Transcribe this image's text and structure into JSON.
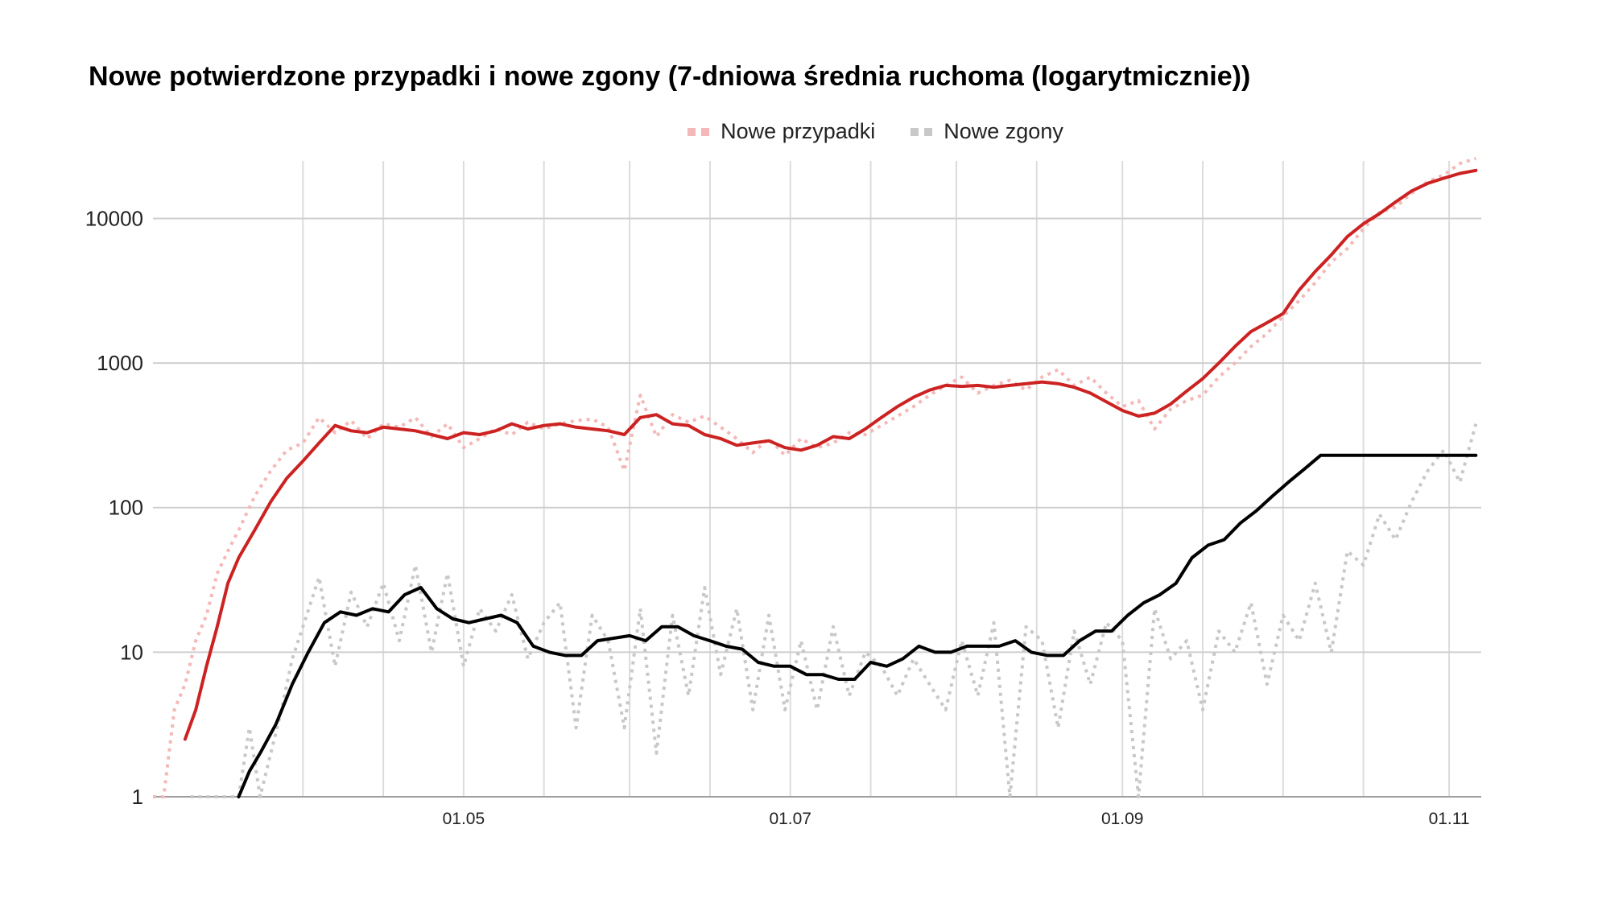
{
  "chart_data": {
    "type": "line",
    "title": "Nowe potwierdzone przypadki i nowe zgony (7-dniowa średnia ruchoma (logarytmicznie))",
    "y_scale": "log",
    "ylim": [
      1,
      25000
    ],
    "y_ticks": [
      1,
      10,
      100,
      1000,
      10000
    ],
    "y_tick_labels": [
      "1",
      "10",
      "100",
      "1000",
      "10000"
    ],
    "x_range": [
      "2020-03-04",
      "2020-11-07"
    ],
    "x_ticks": [
      "2020-05-01",
      "2020-07-01",
      "2020-09-01",
      "2020-11-01"
    ],
    "x_tick_labels": [
      "01.05",
      "01.07",
      "01.09",
      "01.11"
    ],
    "grid": true,
    "legend_position": "top",
    "legend": [
      {
        "name": "Nowe przypadki",
        "color": "#f4b8b8"
      },
      {
        "name": "Nowe zgony",
        "color": "#c8c8c8"
      }
    ],
    "series": [
      {
        "name": "Nowe przypadki",
        "style": "dotted",
        "color": "#f4b8b8",
        "x": [
          "2020-03-04",
          "2020-03-06",
          "2020-03-08",
          "2020-03-10",
          "2020-03-12",
          "2020-03-14",
          "2020-03-16",
          "2020-03-18",
          "2020-03-20",
          "2020-03-23",
          "2020-03-26",
          "2020-03-29",
          "2020-04-01",
          "2020-04-04",
          "2020-04-07",
          "2020-04-10",
          "2020-04-13",
          "2020-04-16",
          "2020-04-19",
          "2020-04-22",
          "2020-04-25",
          "2020-04-28",
          "2020-05-01",
          "2020-05-04",
          "2020-05-07",
          "2020-05-10",
          "2020-05-13",
          "2020-05-16",
          "2020-05-19",
          "2020-05-22",
          "2020-05-25",
          "2020-05-28",
          "2020-05-31",
          "2020-06-03",
          "2020-06-06",
          "2020-06-09",
          "2020-06-12",
          "2020-06-15",
          "2020-06-18",
          "2020-06-21",
          "2020-06-24",
          "2020-06-27",
          "2020-06-30",
          "2020-07-03",
          "2020-07-06",
          "2020-07-09",
          "2020-07-12",
          "2020-07-15",
          "2020-07-18",
          "2020-07-21",
          "2020-07-24",
          "2020-07-27",
          "2020-07-30",
          "2020-08-02",
          "2020-08-05",
          "2020-08-08",
          "2020-08-11",
          "2020-08-14",
          "2020-08-17",
          "2020-08-20",
          "2020-08-23",
          "2020-08-26",
          "2020-08-29",
          "2020-09-01",
          "2020-09-04",
          "2020-09-07",
          "2020-09-10",
          "2020-09-13",
          "2020-09-16",
          "2020-09-19",
          "2020-09-22",
          "2020-09-25",
          "2020-09-28",
          "2020-10-01",
          "2020-10-04",
          "2020-10-07",
          "2020-10-10",
          "2020-10-13",
          "2020-10-16",
          "2020-10-19",
          "2020-10-22",
          "2020-10-25",
          "2020-10-28",
          "2020-10-31",
          "2020-11-03",
          "2020-11-06"
        ],
        "values": [
          1,
          1,
          4,
          6,
          12,
          18,
          35,
          50,
          70,
          120,
          180,
          250,
          280,
          420,
          330,
          400,
          300,
          380,
          360,
          420,
          310,
          380,
          260,
          300,
          350,
          320,
          390,
          350,
          380,
          400,
          410,
          360,
          180,
          600,
          310,
          440,
          390,
          430,
          360,
          300,
          240,
          300,
          230,
          300,
          260,
          280,
          330,
          320,
          370,
          430,
          500,
          600,
          700,
          800,
          620,
          700,
          760,
          650,
          800,
          900,
          700,
          800,
          620,
          500,
          550,
          350,
          480,
          550,
          600,
          800,
          1000,
          1300,
          1600,
          2100,
          2700,
          3600,
          5000,
          6200,
          8500,
          11000,
          12000,
          15000,
          18000,
          20000,
          24000,
          26000
        ]
      },
      {
        "name": "Nowe zgony",
        "style": "dotted",
        "color": "#c8c8c8",
        "x": [
          "2020-03-11",
          "2020-03-14",
          "2020-03-17",
          "2020-03-20",
          "2020-03-22",
          "2020-03-24",
          "2020-03-26",
          "2020-03-28",
          "2020-03-30",
          "2020-04-01",
          "2020-04-04",
          "2020-04-07",
          "2020-04-10",
          "2020-04-13",
          "2020-04-16",
          "2020-04-19",
          "2020-04-22",
          "2020-04-25",
          "2020-04-28",
          "2020-05-01",
          "2020-05-04",
          "2020-05-07",
          "2020-05-10",
          "2020-05-13",
          "2020-05-16",
          "2020-05-19",
          "2020-05-22",
          "2020-05-25",
          "2020-05-28",
          "2020-05-31",
          "2020-06-03",
          "2020-06-06",
          "2020-06-09",
          "2020-06-12",
          "2020-06-15",
          "2020-06-18",
          "2020-06-21",
          "2020-06-24",
          "2020-06-27",
          "2020-06-30",
          "2020-07-03",
          "2020-07-06",
          "2020-07-09",
          "2020-07-12",
          "2020-07-15",
          "2020-07-18",
          "2020-07-21",
          "2020-07-24",
          "2020-07-27",
          "2020-07-30",
          "2020-08-02",
          "2020-08-05",
          "2020-08-08",
          "2020-08-11",
          "2020-08-14",
          "2020-08-17",
          "2020-08-20",
          "2020-08-23",
          "2020-08-26",
          "2020-08-29",
          "2020-09-01",
          "2020-09-04",
          "2020-09-07",
          "2020-09-10",
          "2020-09-13",
          "2020-09-16",
          "2020-09-19",
          "2020-09-22",
          "2020-09-25",
          "2020-09-28",
          "2020-10-01",
          "2020-10-04",
          "2020-10-07",
          "2020-10-10",
          "2020-10-13",
          "2020-10-16",
          "2020-10-19",
          "2020-10-22",
          "2020-10-25",
          "2020-10-28",
          "2020-10-31",
          "2020-11-03",
          "2020-11-06"
        ],
        "values": [
          1,
          1,
          1,
          1,
          3,
          1,
          2,
          4,
          9,
          15,
          33,
          8,
          26,
          15,
          30,
          12,
          40,
          10,
          35,
          8,
          20,
          14,
          25,
          9,
          16,
          22,
          3,
          18,
          12,
          3,
          20,
          2,
          18,
          5,
          28,
          7,
          20,
          4,
          18,
          4,
          12,
          4,
          15,
          5,
          10,
          8,
          5,
          9,
          6,
          4,
          12,
          5,
          16,
          1,
          15,
          12,
          3,
          14,
          6,
          16,
          12,
          1,
          20,
          9,
          12,
          4,
          14,
          10,
          22,
          6,
          18,
          12,
          30,
          10,
          50,
          40,
          90,
          60,
          110,
          180,
          250,
          150,
          380
        ]
      }
    ],
    "moving_averages": [
      {
        "color": "#cc2222",
        "x": [
          "2020-03-10",
          "2020-03-12",
          "2020-03-14",
          "2020-03-16",
          "2020-03-18",
          "2020-03-20",
          "2020-03-23",
          "2020-03-26",
          "2020-03-29",
          "2020-04-01",
          "2020-04-04",
          "2020-04-07",
          "2020-04-10",
          "2020-04-13",
          "2020-04-16",
          "2020-04-19",
          "2020-04-22",
          "2020-04-25",
          "2020-04-28",
          "2020-05-01",
          "2020-05-04",
          "2020-05-07",
          "2020-05-10",
          "2020-05-13",
          "2020-05-16",
          "2020-05-19",
          "2020-05-22",
          "2020-05-25",
          "2020-05-28",
          "2020-05-31",
          "2020-06-03",
          "2020-06-06",
          "2020-06-09",
          "2020-06-12",
          "2020-06-15",
          "2020-06-18",
          "2020-06-21",
          "2020-06-24",
          "2020-06-27",
          "2020-06-30",
          "2020-07-03",
          "2020-07-06",
          "2020-07-09",
          "2020-07-12",
          "2020-07-15",
          "2020-07-18",
          "2020-07-21",
          "2020-07-24",
          "2020-07-27",
          "2020-07-30",
          "2020-08-02",
          "2020-08-05",
          "2020-08-08",
          "2020-08-11",
          "2020-08-14",
          "2020-08-17",
          "2020-08-20",
          "2020-08-23",
          "2020-08-26",
          "2020-08-29",
          "2020-09-01",
          "2020-09-04",
          "2020-09-07",
          "2020-09-10",
          "2020-09-13",
          "2020-09-16",
          "2020-09-19",
          "2020-09-22",
          "2020-09-25",
          "2020-09-28",
          "2020-10-01",
          "2020-10-04",
          "2020-10-07",
          "2020-10-10",
          "2020-10-13",
          "2020-10-16",
          "2020-10-19",
          "2020-10-22",
          "2020-10-25",
          "2020-10-28",
          "2020-10-31",
          "2020-11-03",
          "2020-11-06"
        ],
        "values": [
          2.5,
          4,
          8,
          15,
          30,
          45,
          70,
          110,
          160,
          210,
          280,
          370,
          340,
          330,
          360,
          350,
          340,
          320,
          300,
          330,
          320,
          340,
          380,
          350,
          370,
          380,
          360,
          350,
          340,
          320,
          420,
          440,
          380,
          370,
          320,
          300,
          270,
          280,
          290,
          260,
          250,
          270,
          310,
          300,
          350,
          420,
          500,
          580,
          650,
          700,
          690,
          700,
          680,
          700,
          720,
          740,
          720,
          680,
          620,
          540,
          470,
          430,
          450,
          520,
          640,
          780,
          1000,
          1300,
          1650,
          1900,
          2200,
          3200,
          4300,
          5600,
          7500,
          9200,
          10800,
          13000,
          15500,
          17500,
          19000,
          20500,
          21500
        ]
      },
      {
        "color": "#000000",
        "x": [
          "2020-03-20",
          "2020-03-22",
          "2020-03-24",
          "2020-03-27",
          "2020-03-30",
          "2020-04-02",
          "2020-04-05",
          "2020-04-08",
          "2020-04-11",
          "2020-04-14",
          "2020-04-17",
          "2020-04-20",
          "2020-04-23",
          "2020-04-26",
          "2020-04-29",
          "2020-05-02",
          "2020-05-05",
          "2020-05-08",
          "2020-05-11",
          "2020-05-14",
          "2020-05-17",
          "2020-05-20",
          "2020-05-23",
          "2020-05-26",
          "2020-05-29",
          "2020-06-01",
          "2020-06-04",
          "2020-06-07",
          "2020-06-10",
          "2020-06-13",
          "2020-06-16",
          "2020-06-19",
          "2020-06-22",
          "2020-06-25",
          "2020-06-28",
          "2020-07-01",
          "2020-07-04",
          "2020-07-07",
          "2020-07-10",
          "2020-07-13",
          "2020-07-16",
          "2020-07-19",
          "2020-07-22",
          "2020-07-25",
          "2020-07-28",
          "2020-07-31",
          "2020-08-03",
          "2020-08-06",
          "2020-08-09",
          "2020-08-12",
          "2020-08-15",
          "2020-08-18",
          "2020-08-21",
          "2020-08-24",
          "2020-08-27",
          "2020-08-30",
          "2020-09-02",
          "2020-09-05",
          "2020-09-08",
          "2020-09-11",
          "2020-09-14",
          "2020-09-17",
          "2020-09-20",
          "2020-09-23",
          "2020-09-26",
          "2020-09-29",
          "2020-10-02",
          "2020-10-05",
          "2020-10-08",
          "2020-10-11",
          "2020-10-14",
          "2020-10-17",
          "2020-10-20",
          "2020-10-23",
          "2020-10-26",
          "2020-10-29",
          "2020-11-01",
          "2020-11-04",
          "2020-11-06"
        ],
        "values": [
          1,
          1.5,
          2,
          3.2,
          6,
          10,
          16,
          19,
          18,
          20,
          19,
          25,
          28,
          20,
          17,
          16,
          17,
          18,
          16,
          11,
          10,
          9.5,
          9.5,
          12,
          12.5,
          13,
          12,
          15,
          15,
          13,
          12,
          11,
          10.5,
          8.5,
          8,
          8,
          7,
          7,
          6.5,
          6.5,
          8.5,
          8,
          9,
          11,
          10,
          10,
          11,
          11,
          11,
          12,
          10,
          9.5,
          9.5,
          12,
          14,
          14,
          18,
          22,
          25,
          30,
          45,
          55,
          60,
          78,
          95,
          120,
          150,
          185,
          230,
          230,
          230,
          230,
          230,
          230,
          230,
          230,
          230,
          230,
          230
        ]
      }
    ]
  }
}
